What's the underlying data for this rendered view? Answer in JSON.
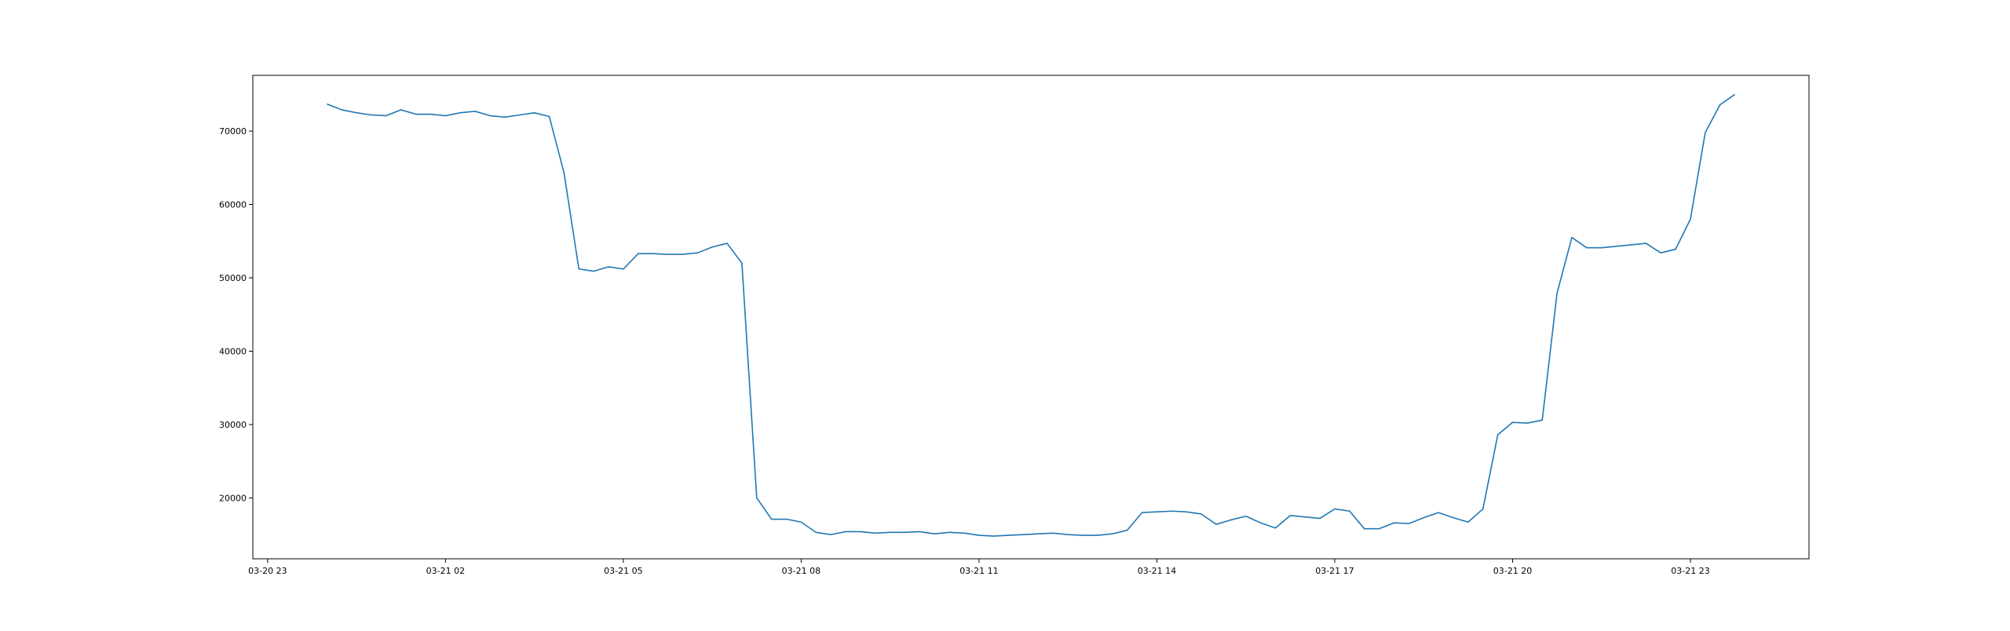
{
  "chart_data": {
    "type": "line",
    "title": "",
    "xlabel": "",
    "ylabel": "",
    "x_tick_labels": [
      "03-20 23",
      "03-21 02",
      "03-21 05",
      "03-21 08",
      "03-21 11",
      "03-21 14",
      "03-21 17",
      "03-21 20",
      "03-21 23"
    ],
    "y_tick_values": [
      20000,
      30000,
      40000,
      50000,
      60000,
      70000
    ],
    "y_tick_labels": [
      "20000",
      "30000",
      "40000",
      "50000",
      "60000",
      "70000"
    ],
    "xlim": [
      "2023-03-20 22:45",
      "2023-03-22 01:00"
    ],
    "ylim": [
      11700,
      77600
    ],
    "grid": false,
    "line_color": "#1f77b4",
    "series": [
      {
        "x": [
          "2023-03-21 00:00",
          "2023-03-21 00:15",
          "2023-03-21 00:30",
          "2023-03-21 00:45",
          "2023-03-21 01:00",
          "2023-03-21 01:15",
          "2023-03-21 01:30",
          "2023-03-21 01:45",
          "2023-03-21 02:00",
          "2023-03-21 02:15",
          "2023-03-21 02:30",
          "2023-03-21 02:45",
          "2023-03-21 03:00",
          "2023-03-21 03:15",
          "2023-03-21 03:30",
          "2023-03-21 03:45",
          "2023-03-21 04:00",
          "2023-03-21 04:15",
          "2023-03-21 04:30",
          "2023-03-21 04:45",
          "2023-03-21 05:00",
          "2023-03-21 05:15",
          "2023-03-21 05:30",
          "2023-03-21 05:45",
          "2023-03-21 06:00",
          "2023-03-21 06:15",
          "2023-03-21 06:30",
          "2023-03-21 06:45",
          "2023-03-21 07:00",
          "2023-03-21 07:15",
          "2023-03-21 07:30",
          "2023-03-21 07:45",
          "2023-03-21 08:00",
          "2023-03-21 08:15",
          "2023-03-21 08:30",
          "2023-03-21 08:45",
          "2023-03-21 09:00",
          "2023-03-21 09:15",
          "2023-03-21 09:30",
          "2023-03-21 09:45",
          "2023-03-21 10:00",
          "2023-03-21 10:15",
          "2023-03-21 10:30",
          "2023-03-21 10:45",
          "2023-03-21 11:00",
          "2023-03-21 11:15",
          "2023-03-21 11:30",
          "2023-03-21 11:45",
          "2023-03-21 12:00",
          "2023-03-21 12:15",
          "2023-03-21 12:30",
          "2023-03-21 12:45",
          "2023-03-21 13:00",
          "2023-03-21 13:15",
          "2023-03-21 13:30",
          "2023-03-21 13:45",
          "2023-03-21 14:00",
          "2023-03-21 14:15",
          "2023-03-21 14:30",
          "2023-03-21 14:45",
          "2023-03-21 15:00",
          "2023-03-21 15:15",
          "2023-03-21 15:30",
          "2023-03-21 15:45",
          "2023-03-21 16:00",
          "2023-03-21 16:15",
          "2023-03-21 16:30",
          "2023-03-21 16:45",
          "2023-03-21 17:00",
          "2023-03-21 17:15",
          "2023-03-21 17:30",
          "2023-03-21 17:45",
          "2023-03-21 18:00",
          "2023-03-21 18:15",
          "2023-03-21 18:30",
          "2023-03-21 18:45",
          "2023-03-21 19:00",
          "2023-03-21 19:15",
          "2023-03-21 19:30",
          "2023-03-21 19:45",
          "2023-03-21 20:00",
          "2023-03-21 20:15",
          "2023-03-21 20:30",
          "2023-03-21 20:45",
          "2023-03-21 21:00",
          "2023-03-21 21:15",
          "2023-03-21 21:30",
          "2023-03-21 21:45",
          "2023-03-21 22:00",
          "2023-03-21 22:15",
          "2023-03-21 22:30",
          "2023-03-21 22:45",
          "2023-03-21 23:00",
          "2023-03-21 23:15",
          "2023-03-21 23:30",
          "2023-03-21 23:45"
        ],
        "values": [
          73700,
          72900,
          72500,
          72200,
          72100,
          72900,
          72300,
          72300,
          72100,
          72500,
          72700,
          72100,
          71900,
          72200,
          72500,
          72000,
          64300,
          51200,
          50900,
          51500,
          51200,
          53300,
          53300,
          53200,
          53200,
          53400,
          54200,
          54700,
          52000,
          20000,
          17100,
          17100,
          16700,
          15300,
          15000,
          15400,
          15400,
          15200,
          15300,
          15300,
          15400,
          15100,
          15300,
          15200,
          14900,
          14800,
          14900,
          15000,
          15100,
          15200,
          15000,
          14900,
          14900,
          15100,
          15600,
          18000,
          18100,
          18200,
          18100,
          17800,
          16400,
          17000,
          17500,
          16600,
          15900,
          17600,
          17400,
          17200,
          18500,
          18200,
          15800,
          15800,
          16600,
          16500,
          17300,
          18000,
          17300,
          16700,
          18500,
          28600,
          30300,
          30200,
          30600,
          47900,
          55500,
          54100,
          54100,
          54300,
          54500,
          54700,
          53400,
          53900,
          58000,
          69800,
          73600,
          75000
        ]
      }
    ]
  }
}
